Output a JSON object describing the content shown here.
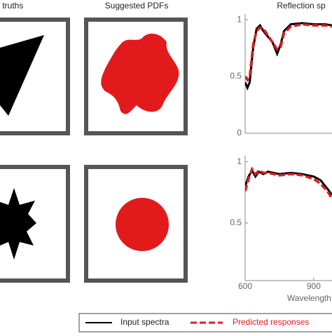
{
  "panels": [
    "nd truths",
    "Suggested PDFs"
  ],
  "chart_data": [
    {
      "type": "line",
      "title": "Reflection sp",
      "x": [
        600,
        610,
        620,
        635,
        650,
        665,
        680,
        700,
        720,
        740,
        755,
        770,
        800,
        850,
        900,
        950,
        980
      ],
      "series": [
        {
          "name": "Input spectra",
          "color": "#000000",
          "dash": false,
          "values": [
            0.45,
            0.4,
            0.45,
            0.75,
            0.92,
            0.95,
            0.9,
            0.85,
            0.8,
            0.7,
            0.78,
            0.9,
            0.96,
            0.97,
            0.96,
            0.96,
            0.95
          ]
        },
        {
          "name": "Predicted responses",
          "color": "#e31a1c",
          "dash": true,
          "values": [
            0.5,
            0.47,
            0.5,
            0.78,
            0.9,
            0.93,
            0.92,
            0.86,
            0.8,
            0.74,
            0.76,
            0.88,
            0.94,
            0.96,
            0.95,
            0.95,
            0.94
          ]
        }
      ],
      "xlim": [
        600,
        980
      ],
      "ylim": [
        0,
        1.05
      ],
      "yticks": [
        0,
        0.5,
        1
      ]
    },
    {
      "type": "line",
      "xlabel": "Wavelength",
      "x": [
        600,
        615,
        630,
        645,
        660,
        680,
        700,
        750,
        800,
        850,
        900,
        930,
        960,
        980
      ],
      "series": [
        {
          "color": "#000000",
          "dash": false,
          "values": [
            0.8,
            0.88,
            0.93,
            0.88,
            0.92,
            0.9,
            0.92,
            0.9,
            0.91,
            0.9,
            0.88,
            0.85,
            0.78,
            0.73
          ]
        },
        {
          "color": "#e31a1c",
          "dash": true,
          "values": [
            0.76,
            0.86,
            0.94,
            0.9,
            0.93,
            0.91,
            0.91,
            0.89,
            0.9,
            0.89,
            0.86,
            0.82,
            0.76,
            0.7
          ]
        }
      ],
      "xlim": [
        600,
        980
      ],
      "ylim": [
        0.03,
        1.05
      ],
      "xticks": [
        600,
        900
      ],
      "yticks": [
        0.5,
        1
      ]
    }
  ]
}
